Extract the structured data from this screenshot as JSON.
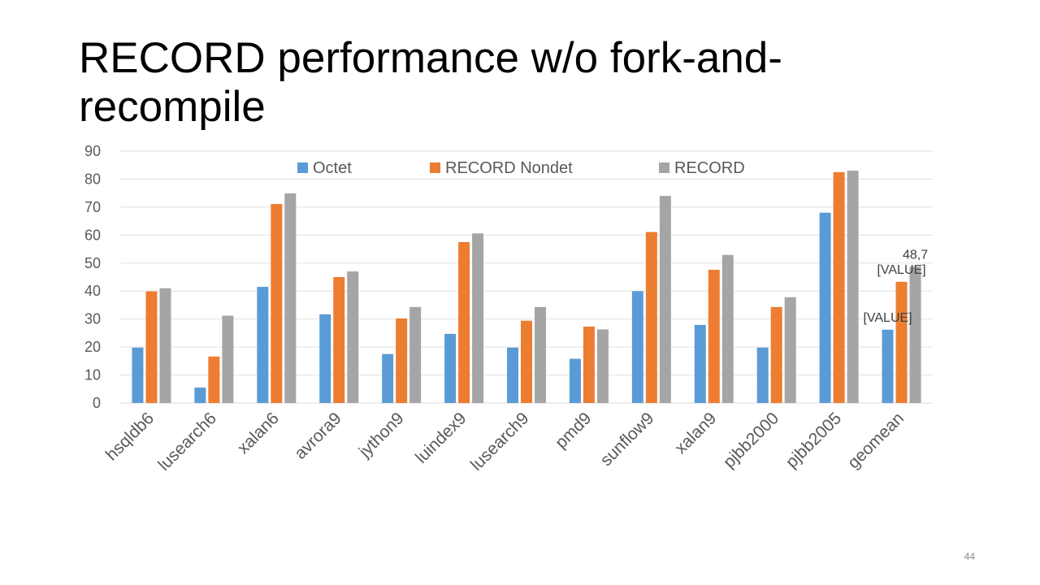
{
  "slide": {
    "title": "RECORD performance w/o fork-and-recompile",
    "title_line1": "RECORD performance w/o fork-and-",
    "title_line2": "recompile",
    "page_number": "44"
  },
  "chart_data": {
    "type": "bar",
    "title": "",
    "xlabel": "",
    "ylabel": "",
    "ylim": [
      0,
      90
    ],
    "yticks": [
      0,
      10,
      20,
      30,
      40,
      50,
      60,
      70,
      80,
      90
    ],
    "grid": true,
    "legend_position": "top",
    "categories": [
      "hsqldb6",
      "lusearch6",
      "xalan6",
      "avrora9",
      "jython9",
      "luindex9",
      "lusearch9",
      "pmd9",
      "sunflow9",
      "xalan9",
      "pjbb2000",
      "pjbb2005",
      "geomean"
    ],
    "series": [
      {
        "name": "Octet",
        "color": "#5b9bd5",
        "values": [
          19.8,
          5.5,
          41.5,
          31.7,
          17.5,
          24.7,
          19.8,
          15.8,
          40.0,
          27.9,
          19.8,
          68.0,
          26.2
        ]
      },
      {
        "name": "RECORD Nondet",
        "color": "#ed7d31",
        "values": [
          39.9,
          16.6,
          71.1,
          45.0,
          30.2,
          57.5,
          29.4,
          27.3,
          61.1,
          47.6,
          34.3,
          82.5,
          43.3
        ]
      },
      {
        "name": "RECORD",
        "color": "#a5a5a5",
        "values": [
          41.0,
          31.2,
          74.9,
          47.0,
          34.3,
          60.6,
          34.3,
          26.3,
          74.0,
          52.9,
          37.8,
          83.0,
          48.7
        ]
      }
    ],
    "data_labels": [
      {
        "series": 0,
        "category": 12,
        "text": "[VALUE]"
      },
      {
        "series": 1,
        "category": 12,
        "text": "[VALUE]"
      },
      {
        "series": 2,
        "category": 12,
        "text": "48,7"
      }
    ]
  }
}
